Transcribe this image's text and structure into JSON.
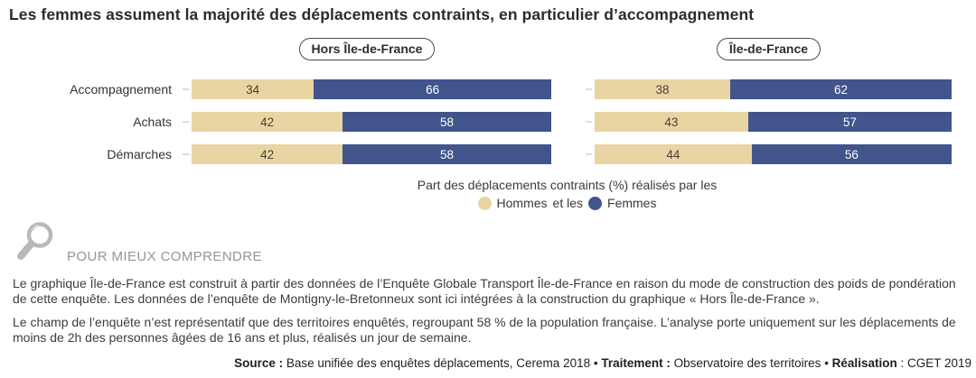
{
  "title": "Les femmes assument la majorité des déplacements contraints, en particulier d’accompagnement",
  "colors": {
    "hommes": "#e9d4a3",
    "femmes": "#41548c"
  },
  "chart_data": {
    "type": "bar",
    "orientation": "horizontal",
    "stacked": true,
    "unit": "%",
    "xlim": [
      0,
      100
    ],
    "grid": false,
    "categories": [
      "Accompagnement",
      "Achats",
      "Démarches"
    ],
    "panels": [
      {
        "title": "Hors Île-de-France",
        "series": [
          {
            "name": "Hommes",
            "color": "#e9d4a3",
            "values": [
              34,
              42,
              42
            ]
          },
          {
            "name": "Femmes",
            "color": "#41548c",
            "values": [
              66,
              58,
              58
            ]
          }
        ]
      },
      {
        "title": "Île-de-France",
        "series": [
          {
            "name": "Hommes",
            "color": "#e9d4a3",
            "values": [
              38,
              43,
              44
            ]
          },
          {
            "name": "Femmes",
            "color": "#41548c",
            "values": [
              62,
              57,
              56
            ]
          }
        ]
      }
    ],
    "legend_position": "bottom-center"
  },
  "legend": {
    "caption": "Part des déplacements contraints (%) réalisés par les",
    "hommes_label": "Hommes",
    "separator": "et les",
    "femmes_label": "Femmes"
  },
  "note": {
    "heading": "POUR MIEUX COMPRENDRE",
    "paragraphs": [
      "Le graphique Île-de-France est construit à partir des données de l’Enquête Globale Transport Île-de-France en raison du mode de construction des poids de pondération de cette enquête. Les données de l’enquête de Montigny-le-Bretonneux sont ici intégrées à la construction du graphique « Hors Île-de-France ».",
      "Le champ de l’enquête n’est représentatif que des territoires enquêtés, regroupant 58 % de la population française. L’analyse porte uniquement sur les déplacements de moins de 2h des personnes âgées de 16 ans et plus, réalisés un jour de semaine."
    ]
  },
  "footer": {
    "segments": [
      {
        "text": "Source :",
        "bold": true
      },
      {
        "text": " Base unifiée des enquêtes déplacements, Cerema 2018 ",
        "bold": false
      },
      {
        "text": "• ",
        "bold": false
      },
      {
        "text": "Traitement :",
        "bold": true
      },
      {
        "text": " Observatoire des territoires ",
        "bold": false
      },
      {
        "text": "• ",
        "bold": false
      },
      {
        "text": "Réalisation",
        "bold": true
      },
      {
        "text": " : CGET 2019",
        "bold": false
      }
    ]
  }
}
